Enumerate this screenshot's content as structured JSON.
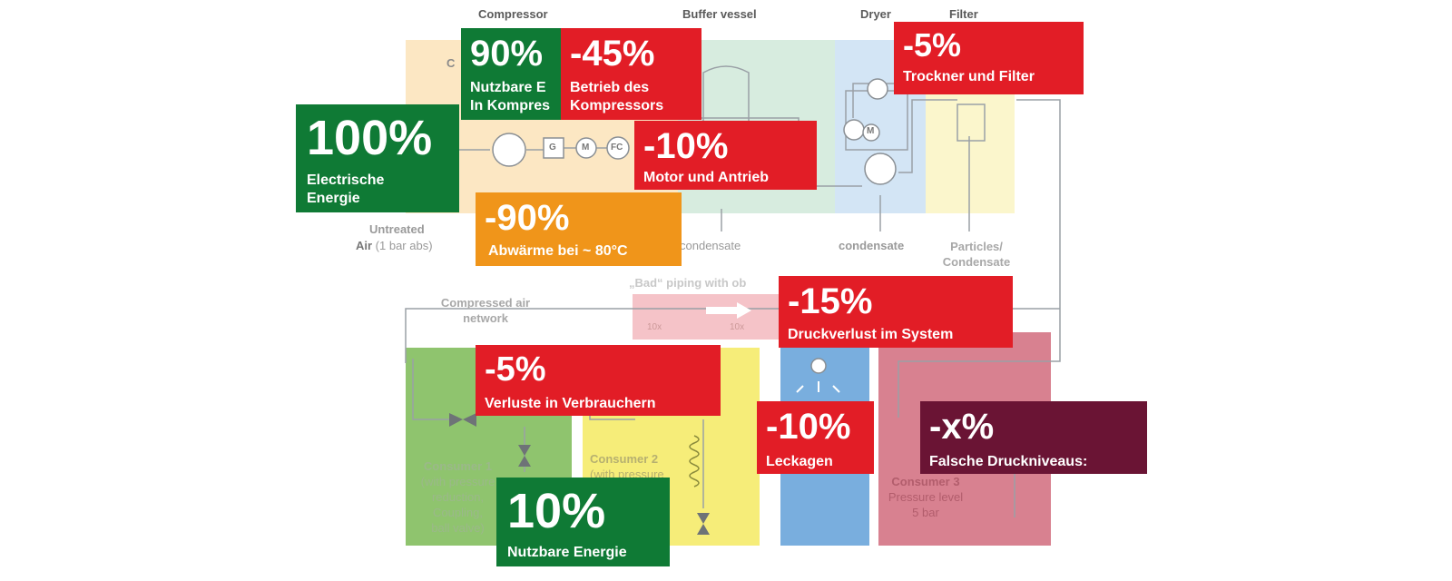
{
  "diagram": {
    "stage_labels": {
      "compressor": "Compressor",
      "buffer_vessel": "Buffer vessel",
      "dryer": "Dryer",
      "filter": "Filter"
    },
    "compressor_box_fragment": "C",
    "component_labels": {
      "generator": "G",
      "motor": "M",
      "frequency_converter": "FC",
      "dryer_motor": "M"
    },
    "untreated_air": {
      "line1": "Untreated",
      "line2_bold": "Air",
      "line2_rest": " (1 bar abs)"
    },
    "condensate_buffer": "condensate",
    "condensate_dryer": "condensate",
    "particles_line1": "Particles/",
    "particles_line2": "Condensate",
    "bad_piping": "„Bad“ piping with ob",
    "piping_marks": [
      "10x",
      "10x"
    ],
    "network_line1": "Compressed air",
    "network_line2": "network",
    "consumer1": [
      "Consumer 1",
      "(with pressure",
      "reduction,",
      "Coupling,",
      "ball valve)"
    ],
    "consumer2": [
      "Consumer 2",
      "(with pressure"
    ],
    "consumer3": [
      "Consumer 3",
      "Pressure level",
      "5 bar"
    ]
  },
  "callouts": {
    "electric_energy": {
      "pct": "100%",
      "line1": "Electrische",
      "line2": "Energie",
      "color": "#0f7a35"
    },
    "usable_in_compressor": {
      "pct": "90%",
      "line1": "Nutzbare E",
      "line2": "In Kompres",
      "color": "#0f7a35"
    },
    "compressor_operation": {
      "pct": "-45%",
      "line1": "Betrieb des",
      "line2": "Kompressors",
      "color": "#e21d26"
    },
    "motor_drive": {
      "pct": "-10%",
      "line1": "Motor und Antrieb",
      "color": "#e21d26"
    },
    "waste_heat": {
      "pct": "-90%",
      "line1": "Abwärme bei ~ 80°C",
      "color": "#f0951a"
    },
    "dryer_filter": {
      "pct": "-5%",
      "line1": "Trockner und Filter",
      "color": "#e21d26"
    },
    "pressure_loss": {
      "pct": "-15%",
      "line1": "Druckverlust im System",
      "color": "#e21d26"
    },
    "consumer_losses": {
      "pct": "-5%",
      "line1": "Verluste in Verbrauchern",
      "color": "#e21d26"
    },
    "leakages": {
      "pct": "-10%",
      "line1": "Leckagen",
      "color": "#e21d26"
    },
    "wrong_pressure": {
      "pct": "-x%",
      "line1": "Falsche Druckniveaus:",
      "color": "#6a1434"
    },
    "usable_energy": {
      "pct": "10%",
      "line1": "Nutzbare Energie",
      "color": "#0f7a35"
    }
  }
}
